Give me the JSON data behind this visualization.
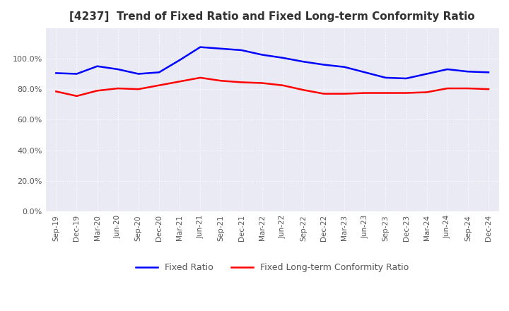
{
  "title": "[4237]  Trend of Fixed Ratio and Fixed Long-term Conformity Ratio",
  "title_fontsize": 11,
  "x_labels": [
    "Sep-19",
    "Dec-19",
    "Mar-20",
    "Jun-20",
    "Sep-20",
    "Dec-20",
    "Mar-21",
    "Jun-21",
    "Sep-21",
    "Dec-21",
    "Mar-22",
    "Jun-22",
    "Sep-22",
    "Dec-22",
    "Mar-23",
    "Jun-23",
    "Sep-23",
    "Dec-23",
    "Mar-24",
    "Jun-24",
    "Sep-24",
    "Dec-24"
  ],
  "fixed_ratio": [
    90.5,
    90.0,
    95.0,
    93.0,
    90.0,
    91.0,
    99.0,
    107.5,
    106.5,
    105.5,
    102.5,
    100.5,
    98.0,
    96.0,
    94.5,
    91.0,
    87.5,
    87.0,
    90.0,
    93.0,
    91.5,
    91.0
  ],
  "fixed_lt_ratio": [
    78.5,
    75.5,
    79.0,
    80.5,
    80.0,
    82.5,
    85.0,
    87.5,
    85.5,
    84.5,
    84.0,
    82.5,
    79.5,
    77.0,
    77.0,
    77.5,
    77.5,
    77.5,
    78.0,
    80.5,
    80.5,
    80.0
  ],
  "ylim": [
    0,
    120
  ],
  "yticks": [
    0,
    20,
    40,
    60,
    80,
    100
  ],
  "fixed_ratio_color": "#0000FF",
  "fixed_lt_ratio_color": "#FF0000",
  "line_width": 1.8,
  "background_color": "#FFFFFF",
  "plot_bg_color": "#EAEAF4",
  "grid_color": "#FFFFFF",
  "legend_fixed_ratio": "Fixed Ratio",
  "legend_fixed_lt": "Fixed Long-term Conformity Ratio"
}
